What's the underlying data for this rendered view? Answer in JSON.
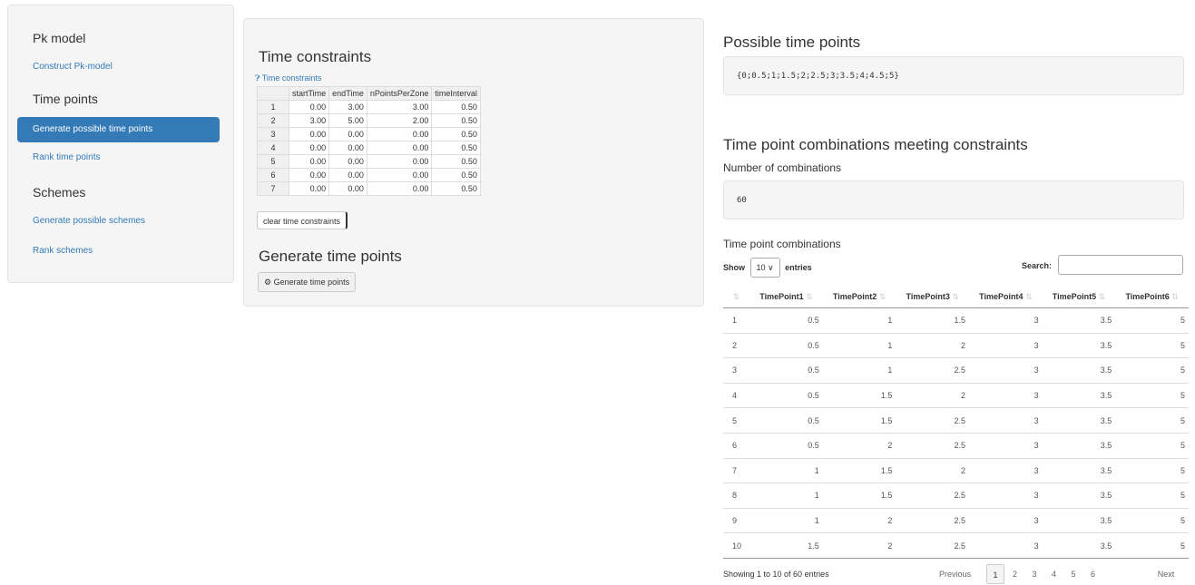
{
  "sidebar": {
    "items": [
      {
        "text": "Pk model",
        "kind": "heading"
      },
      {
        "text": "Construct Pk-model",
        "kind": "link"
      },
      {
        "text": "Time points",
        "kind": "heading"
      },
      {
        "text": "Generate possible time points",
        "kind": "active"
      },
      {
        "text": "Rank time points",
        "kind": "link"
      },
      {
        "text": "Schemes",
        "kind": "heading"
      },
      {
        "text": "Generate possible schemes",
        "kind": "link"
      },
      {
        "text": "Rank schemes",
        "kind": "link"
      }
    ]
  },
  "constraints": {
    "title": "Time constraints",
    "help": "Time constraints",
    "table": {
      "headers": [
        "startTime",
        "endTime",
        "nPointsPerZone",
        "timeInterval"
      ],
      "rows": [
        [
          1,
          "0.00",
          "3.00",
          "3.00",
          "0.50"
        ],
        [
          2,
          "3.00",
          "5.00",
          "2.00",
          "0.50"
        ],
        [
          3,
          "0.00",
          "0.00",
          "0.00",
          "0.50"
        ],
        [
          4,
          "0.00",
          "0.00",
          "0.00",
          "0.50"
        ],
        [
          5,
          "0.00",
          "0.00",
          "0.00",
          "0.50"
        ],
        [
          6,
          "0.00",
          "0.00",
          "0.00",
          "0.50"
        ],
        [
          7,
          "0.00",
          "0.00",
          "0.00",
          "0.50"
        ]
      ]
    },
    "clear_button": "clear time constraints"
  },
  "generate": {
    "title": "Generate time points",
    "button": "Generate time points"
  },
  "possible": {
    "title": "Possible time points",
    "value": "{0;0.5;1;1.5;2;2.5;3;3.5;4;4.5;5}"
  },
  "combinations": {
    "title": "Time point combinations meeting constraints",
    "count_label": "Number of combinations",
    "count": 60,
    "table_title": "Time point combinations",
    "show": "Show",
    "length": 10,
    "entries": "entries",
    "search": "Search:",
    "table": {
      "headers": [
        "TimePoint1",
        "TimePoint2",
        "TimePoint3",
        "TimePoint4",
        "TimePoint5",
        "TimePoint6"
      ],
      "rows": [
        [
          1,
          0.5,
          1,
          1.5,
          3,
          3.5,
          5
        ],
        [
          2,
          0.5,
          1,
          2,
          3,
          3.5,
          5
        ],
        [
          3,
          0.5,
          1,
          2.5,
          3,
          3.5,
          5
        ],
        [
          4,
          0.5,
          1.5,
          2,
          3,
          3.5,
          5
        ],
        [
          5,
          0.5,
          1.5,
          2.5,
          3,
          3.5,
          5
        ],
        [
          6,
          0.5,
          2,
          2.5,
          3,
          3.5,
          5
        ],
        [
          7,
          1,
          1.5,
          2,
          3,
          3.5,
          5
        ],
        [
          8,
          1,
          1.5,
          2.5,
          3,
          3.5,
          5
        ],
        [
          9,
          1,
          2,
          2.5,
          3,
          3.5,
          5
        ],
        [
          10,
          1.5,
          2,
          2.5,
          3,
          3.5,
          5
        ]
      ]
    },
    "info": "Showing 1 to 10 of 60 entries",
    "previous": "Previous",
    "pages": [
      1,
      2,
      3,
      4,
      5,
      6
    ],
    "next": "Next"
  }
}
